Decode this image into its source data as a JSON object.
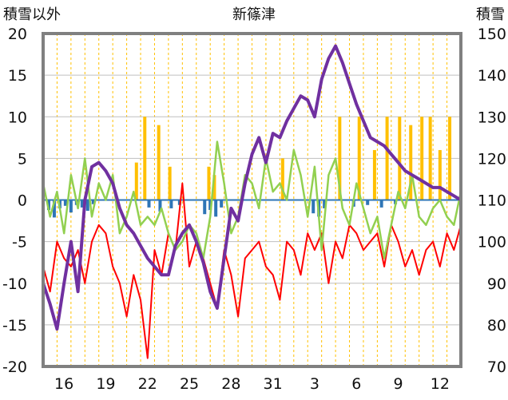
{
  "chart_data": {
    "type": "line",
    "title": "新篠津",
    "ylabel_left": "積雪以外",
    "ylabel_right": "積雪",
    "ylim_left": [
      -20,
      20
    ],
    "ylim_right": [
      70,
      150
    ],
    "yticks_left": [
      20,
      15,
      10,
      5,
      0,
      -5,
      -10,
      -15,
      -20
    ],
    "yticks_right": [
      150,
      140,
      130,
      120,
      110,
      100,
      90,
      80,
      70
    ],
    "xlim": [
      0,
      30
    ],
    "xtick_labels": [
      "16",
      "19",
      "22",
      "25",
      "28",
      "31",
      "3",
      "6",
      "9",
      "12"
    ],
    "xtick_positions": [
      1.5,
      4.5,
      7.5,
      10.5,
      13.5,
      16.5,
      19.5,
      22.5,
      25.5,
      28.5
    ],
    "grid": true,
    "colors": {
      "snow_depth": "#7030a0",
      "temp_max": "#92d050",
      "temp_min": "#ff0000",
      "precip": "#ffc000",
      "bar_negative": "#2e75b6"
    },
    "series": [
      {
        "key": "snow_depth",
        "axis": "right",
        "style": "line",
        "x": [
          0,
          0.5,
          1,
          1.5,
          2,
          2.5,
          3,
          3.5,
          4,
          4.5,
          5,
          5.5,
          6,
          6.5,
          7,
          7.5,
          8,
          8.5,
          9,
          9.5,
          10,
          10.5,
          11,
          11.5,
          12,
          12.5,
          13,
          13.5,
          14,
          14.5,
          15,
          15.5,
          16,
          16.5,
          17,
          17.5,
          18,
          18.5,
          19,
          19.5,
          20,
          20.5,
          21,
          21.5,
          22,
          22.5,
          23,
          23.5,
          24,
          24.5,
          25,
          25.5,
          26,
          26.5,
          27,
          27.5,
          28,
          28.5,
          29,
          29.5,
          30
        ],
        "y": [
          90,
          85,
          79,
          90,
          100,
          88,
          110,
          118,
          119,
          117,
          114,
          108,
          104,
          102,
          99,
          96,
          94,
          92,
          92,
          99,
          102,
          104,
          100,
          95,
          88,
          84,
          96,
          108,
          105,
          114,
          121,
          125,
          119,
          126,
          125,
          129,
          132,
          135,
          134,
          130,
          139,
          144,
          147,
          143,
          138,
          133,
          129,
          125,
          124,
          123,
          121,
          119,
          117,
          116,
          115,
          114,
          113,
          113,
          112,
          111,
          110
        ]
      },
      {
        "key": "temp_max",
        "axis": "left",
        "style": "line",
        "x": [
          0,
          0.5,
          1,
          1.5,
          2,
          2.5,
          3,
          3.5,
          4,
          4.5,
          5,
          5.5,
          6,
          6.5,
          7,
          7.5,
          8,
          8.5,
          9,
          9.5,
          10,
          10.5,
          11,
          11.5,
          12,
          12.5,
          13,
          13.5,
          14,
          14.5,
          15,
          15.5,
          16,
          16.5,
          17,
          17.5,
          18,
          18.5,
          19,
          19.5,
          20,
          20.5,
          21,
          21.5,
          22,
          22.5,
          23,
          23.5,
          24,
          24.5,
          25,
          25.5,
          26,
          26.5,
          27,
          27.5,
          28,
          28.5,
          29,
          29.5,
          30
        ],
        "y": [
          2,
          -2,
          1,
          -4,
          3,
          -1,
          5,
          -2,
          2,
          0,
          3,
          -4,
          -2,
          1,
          -3,
          -2,
          -3,
          -1,
          -4,
          -6,
          -5,
          -3,
          -4,
          -7,
          -2,
          7,
          2,
          -4,
          -2,
          3,
          2,
          -1,
          5,
          1,
          2,
          0,
          6,
          3,
          -2,
          4,
          -6,
          3,
          5,
          -1,
          -3,
          2,
          -1,
          -4,
          -2,
          -7,
          -3,
          1,
          -1,
          3,
          -2,
          -3,
          -1,
          0,
          -2,
          -3,
          1
        ]
      },
      {
        "key": "temp_min",
        "axis": "left",
        "style": "line",
        "x": [
          0,
          0.5,
          1,
          1.5,
          2,
          2.5,
          3,
          3.5,
          4,
          4.5,
          5,
          5.5,
          6,
          6.5,
          7,
          7.5,
          8,
          8.5,
          9,
          9.5,
          10,
          10.5,
          11,
          11.5,
          12,
          12.5,
          13,
          13.5,
          14,
          14.5,
          15,
          15.5,
          16,
          16.5,
          17,
          17.5,
          18,
          18.5,
          19,
          19.5,
          20,
          20.5,
          21,
          21.5,
          22,
          22.5,
          23,
          23.5,
          24,
          24.5,
          25,
          25.5,
          26,
          26.5,
          27,
          27.5,
          28,
          28.5,
          29,
          29.5,
          30
        ],
        "y": [
          -8,
          -11,
          -5,
          -7,
          -8,
          -6,
          -10,
          -5,
          -3,
          -4,
          -8,
          -10,
          -14,
          -9,
          -12,
          -19,
          -6,
          -9,
          -4,
          -6,
          2,
          -8,
          -5,
          -7,
          -10,
          -13,
          -6,
          -9,
          -14,
          -7,
          -6,
          -5,
          -8,
          -9,
          -12,
          -5,
          -6,
          -9,
          -4,
          -6,
          -4,
          -10,
          -5,
          -7,
          -3,
          -4,
          -6,
          -5,
          -4,
          -8,
          -3,
          -5,
          -8,
          -6,
          -9,
          -6,
          -5,
          -8,
          -4,
          -6,
          -3
        ]
      },
      {
        "key": "precip",
        "axis": "left",
        "style": "bars_positive",
        "x": [
          6.7,
          7.3,
          8.3,
          9.1,
          11.9,
          12.3,
          17.2,
          21.3,
          22.7,
          23.8,
          24.7,
          25.6,
          26.4,
          27.2,
          27.8,
          28.5,
          29.2
        ],
        "y": [
          4.5,
          10,
          9,
          4,
          4,
          3,
          5,
          10,
          10,
          6,
          10,
          10,
          9,
          10,
          10,
          6,
          10
        ]
      },
      {
        "key": "bar_negative",
        "axis": "left",
        "style": "bars_negative",
        "x": [
          0.4,
          0.8,
          1.2,
          1.6,
          2.0,
          2.4,
          2.8,
          3.2,
          3.6,
          7.6,
          8.4,
          9.2,
          9.8,
          11.6,
          12.0,
          12.4,
          12.8,
          19.4,
          19.8,
          20.2,
          22.3,
          23.3,
          24.3,
          25.3
        ],
        "y": [
          -1.2,
          -2.1,
          -1.0,
          -0.7,
          -1.5,
          -0.6,
          -0.9,
          -1.3,
          -0.5,
          -0.9,
          -1.4,
          -1.0,
          -0.6,
          -1.7,
          -1.2,
          -2.0,
          -0.9,
          -1.6,
          -2.0,
          -1.0,
          -0.8,
          -0.6,
          -0.9,
          -0.5
        ]
      }
    ]
  }
}
